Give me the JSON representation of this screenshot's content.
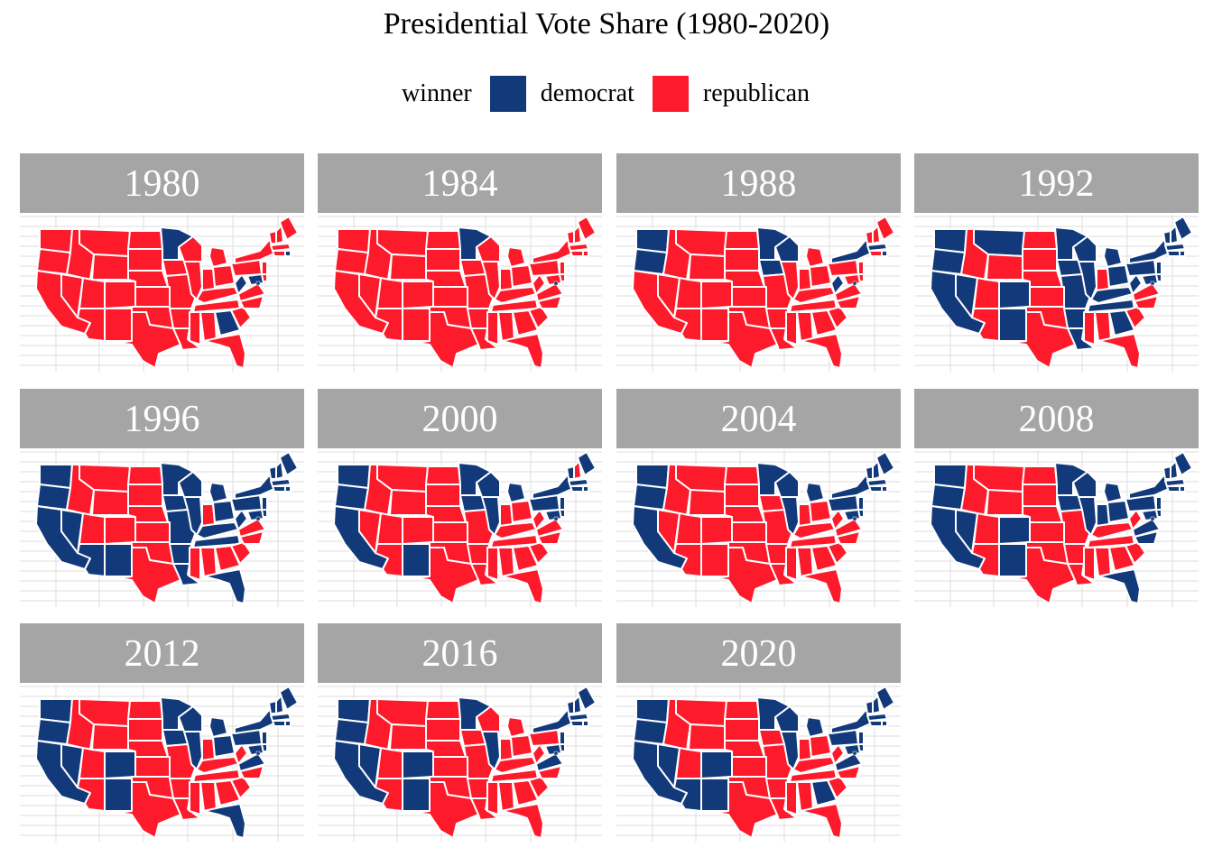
{
  "title": "Presidential Vote Share (1980-2020)",
  "legend": {
    "title": "winner",
    "items": [
      {
        "label": "democrat",
        "color": "#123a7a"
      },
      {
        "label": "republican",
        "color": "#fc1a2b"
      }
    ]
  },
  "colors": {
    "democrat": "#123a7a",
    "republican": "#fc1a2b",
    "strip": "#a5a5a5",
    "grid": "#dddddd"
  },
  "panels": [
    {
      "year": "1980",
      "dem": [
        "MN",
        "GA",
        "RI",
        "MD",
        "WV",
        "DC"
      ]
    },
    {
      "year": "1984",
      "dem": [
        "MN",
        "DC"
      ]
    },
    {
      "year": "1988",
      "dem": [
        "WA",
        "OR",
        "WI",
        "MN",
        "IA",
        "WV",
        "NY",
        "MA",
        "RI",
        "DC"
      ]
    },
    {
      "year": "1992",
      "dem": [
        "WA",
        "OR",
        "CA",
        "NV",
        "MT",
        "CO",
        "NM",
        "MN",
        "IA",
        "WI",
        "MO",
        "AR",
        "LA",
        "IL",
        "MI",
        "OH",
        "KY",
        "TN",
        "GA",
        "WV",
        "PA",
        "NY",
        "VT",
        "NH",
        "ME",
        "MA",
        "RI",
        "CT",
        "NJ",
        "DE",
        "MD",
        "DC"
      ]
    },
    {
      "year": "1996",
      "dem": [
        "WA",
        "OR",
        "CA",
        "NV",
        "AZ",
        "NM",
        "MN",
        "IA",
        "WI",
        "MO",
        "AR",
        "LA",
        "IL",
        "MI",
        "OH",
        "KY",
        "TN",
        "WV",
        "PA",
        "NY",
        "VT",
        "NH",
        "ME",
        "MA",
        "RI",
        "CT",
        "NJ",
        "DE",
        "MD",
        "FL",
        "DC"
      ]
    },
    {
      "year": "2000",
      "dem": [
        "WA",
        "OR",
        "CA",
        "NM",
        "MN",
        "IA",
        "WI",
        "IL",
        "MI",
        "PA",
        "NY",
        "VT",
        "ME",
        "MA",
        "RI",
        "CT",
        "NJ",
        "DE",
        "MD",
        "DC"
      ]
    },
    {
      "year": "2004",
      "dem": [
        "WA",
        "OR",
        "CA",
        "MN",
        "WI",
        "IL",
        "MI",
        "PA",
        "NY",
        "VT",
        "NH",
        "ME",
        "MA",
        "RI",
        "CT",
        "NJ",
        "DE",
        "MD",
        "DC"
      ]
    },
    {
      "year": "2008",
      "dem": [
        "WA",
        "OR",
        "CA",
        "NV",
        "CO",
        "NM",
        "MN",
        "IA",
        "WI",
        "IL",
        "MI",
        "IN",
        "OH",
        "PA",
        "VA",
        "NC",
        "FL",
        "NY",
        "VT",
        "NH",
        "ME",
        "MA",
        "RI",
        "CT",
        "NJ",
        "DE",
        "MD",
        "DC"
      ]
    },
    {
      "year": "2012",
      "dem": [
        "WA",
        "OR",
        "CA",
        "NV",
        "CO",
        "NM",
        "MN",
        "IA",
        "WI",
        "IL",
        "MI",
        "OH",
        "PA",
        "VA",
        "FL",
        "NY",
        "VT",
        "NH",
        "ME",
        "MA",
        "RI",
        "CT",
        "NJ",
        "DE",
        "MD",
        "DC"
      ]
    },
    {
      "year": "2016",
      "dem": [
        "WA",
        "OR",
        "CA",
        "NV",
        "CO",
        "NM",
        "MN",
        "IL",
        "VA",
        "NY",
        "VT",
        "NH",
        "ME",
        "MA",
        "RI",
        "CT",
        "NJ",
        "DE",
        "MD",
        "DC"
      ]
    },
    {
      "year": "2020",
      "dem": [
        "WA",
        "OR",
        "CA",
        "NV",
        "AZ",
        "CO",
        "NM",
        "MN",
        "WI",
        "IL",
        "MI",
        "PA",
        "GA",
        "VA",
        "NY",
        "VT",
        "NH",
        "ME",
        "MA",
        "RI",
        "CT",
        "NJ",
        "DE",
        "MD",
        "DC"
      ]
    }
  ]
}
